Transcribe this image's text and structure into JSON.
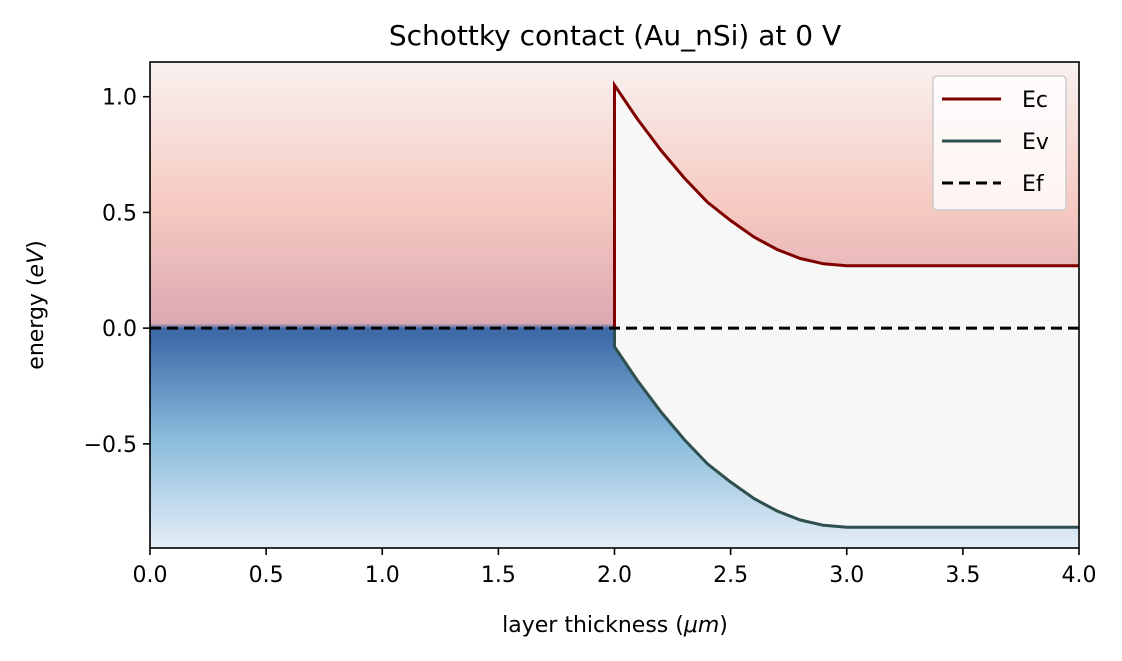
{
  "chart_data": {
    "type": "line",
    "title": "Schottky contact (Au_nSi) at 0 V",
    "xlabel_main": "layer thickness (",
    "xlabel_unit": "μm",
    "xlabel_close": ")",
    "ylabel_main": "energy ",
    "ylabel_open": "(",
    "ylabel_unit": "eV",
    "ylabel_close": ")",
    "xlim": [
      0.0,
      4.0
    ],
    "ylim": [
      -0.95,
      1.15
    ],
    "x_ticks": [
      0.0,
      0.5,
      1.0,
      1.5,
      2.0,
      2.5,
      3.0,
      3.5,
      4.0
    ],
    "x_tick_labels": [
      "0.0",
      "0.5",
      "1.0",
      "1.5",
      "2.0",
      "2.5",
      "3.0",
      "3.5",
      "4.0"
    ],
    "y_ticks": [
      -0.5,
      0.0,
      0.5,
      1.0
    ],
    "y_tick_labels": [
      "−0.5",
      "0.0",
      "0.5",
      "1.0"
    ],
    "grid": false,
    "legend_position": "top-right",
    "metal_region": {
      "x": [
        0.0,
        2.0
      ],
      "fermi_level": 0.0
    },
    "semiconductor": {
      "interface_x": 2.0,
      "depletion_end_x": 3.0,
      "ec_interface": 1.05,
      "ec_bulk": 0.27,
      "ev_interface": -0.08,
      "ev_bulk": -0.86
    },
    "series": [
      {
        "name": "Ec",
        "color": "#800000",
        "style": "solid",
        "x": [
          2.0,
          2.1,
          2.2,
          2.3,
          2.4,
          2.5,
          2.6,
          2.7,
          2.8,
          2.9,
          3.0,
          3.5,
          4.0
        ],
        "y": [
          1.05,
          0.902,
          0.768,
          0.649,
          0.544,
          0.465,
          0.394,
          0.34,
          0.301,
          0.278,
          0.27,
          0.27,
          0.27
        ]
      },
      {
        "name": "Ev",
        "color": "#2f4f4f",
        "style": "solid",
        "x": [
          2.0,
          2.1,
          2.2,
          2.3,
          2.4,
          2.5,
          2.6,
          2.7,
          2.8,
          2.9,
          3.0,
          3.5,
          4.0
        ],
        "y": [
          -0.08,
          -0.228,
          -0.362,
          -0.481,
          -0.586,
          -0.665,
          -0.736,
          -0.79,
          -0.829,
          -0.852,
          -0.86,
          -0.86,
          -0.86
        ]
      },
      {
        "name": "Ef",
        "color": "#000000",
        "style": "dashed",
        "x": [
          0.0,
          4.0
        ],
        "y": [
          0.0,
          0.0
        ]
      }
    ],
    "colors": {
      "metal_top_light": "#f8f1ef",
      "metal_mid_pink": "#f6c9c1",
      "metal_near_ef": "#dba9b2",
      "metal_ef_blue": "#3e6aa8",
      "metal_low_blue": "#86bada",
      "metal_bottom_light": "#e6eef7",
      "gap_fill": "#f7f7f7"
    }
  }
}
